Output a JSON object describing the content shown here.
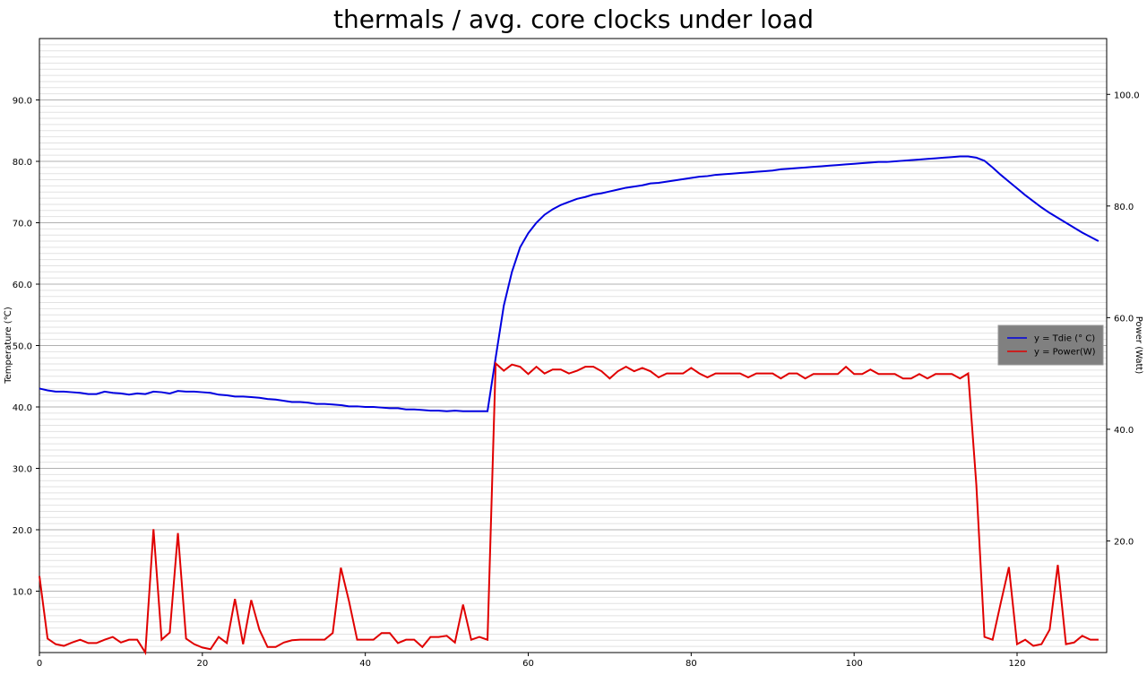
{
  "chart_data": {
    "type": "line",
    "title": "thermals / avg. core clocks under load",
    "y_label": "Temperature (℃)",
    "y2_label": "Power (Watt)",
    "x": [
      0,
      1,
      2,
      3,
      4,
      5,
      6,
      7,
      8,
      9,
      10,
      11,
      12,
      13,
      14,
      15,
      16,
      17,
      18,
      19,
      20,
      21,
      22,
      23,
      24,
      25,
      26,
      27,
      28,
      29,
      30,
      31,
      32,
      33,
      34,
      35,
      36,
      37,
      38,
      39,
      40,
      41,
      42,
      43,
      44,
      45,
      46,
      47,
      48,
      49,
      50,
      51,
      52,
      53,
      54,
      55,
      56,
      57,
      58,
      59,
      60,
      61,
      62,
      63,
      64,
      65,
      66,
      67,
      68,
      69,
      70,
      71,
      72,
      73,
      74,
      75,
      76,
      77,
      78,
      79,
      80,
      81,
      82,
      83,
      84,
      85,
      86,
      87,
      88,
      89,
      90,
      91,
      92,
      93,
      94,
      95,
      96,
      97,
      98,
      99,
      100,
      101,
      102,
      103,
      104,
      105,
      106,
      107,
      108,
      109,
      110,
      111,
      112,
      113,
      114,
      115,
      116,
      117,
      118,
      119,
      120,
      121,
      122,
      123,
      124,
      125,
      126,
      127,
      128,
      129,
      130
    ],
    "series": [
      {
        "name": "y = Tdie (° C)",
        "color": "#0000e0",
        "axis": "y",
        "values": [
          43.0,
          42.7,
          42.5,
          42.5,
          42.4,
          42.3,
          42.1,
          42.1,
          42.5,
          42.3,
          42.2,
          42.0,
          42.2,
          42.1,
          42.5,
          42.4,
          42.2,
          42.6,
          42.5,
          42.5,
          42.4,
          42.3,
          42.0,
          41.9,
          41.7,
          41.7,
          41.6,
          41.5,
          41.3,
          41.2,
          41.0,
          40.8,
          40.8,
          40.7,
          40.5,
          40.5,
          40.4,
          40.3,
          40.1,
          40.1,
          40.0,
          40.0,
          39.9,
          39.8,
          39.8,
          39.6,
          39.6,
          39.5,
          39.4,
          39.4,
          39.3,
          39.4,
          39.3,
          39.3,
          39.3,
          39.3,
          48.0,
          56.5,
          62.0,
          66.0,
          68.3,
          70.0,
          71.3,
          72.2,
          72.9,
          73.4,
          73.9,
          74.2,
          74.6,
          74.8,
          75.1,
          75.4,
          75.7,
          75.9,
          76.1,
          76.4,
          76.5,
          76.7,
          76.9,
          77.1,
          77.3,
          77.5,
          77.6,
          77.8,
          77.9,
          78.0,
          78.1,
          78.2,
          78.3,
          78.4,
          78.5,
          78.7,
          78.8,
          78.9,
          79.0,
          79.1,
          79.2,
          79.3,
          79.4,
          79.5,
          79.6,
          79.7,
          79.8,
          79.9,
          79.9,
          80.0,
          80.1,
          80.2,
          80.3,
          80.4,
          80.5,
          80.6,
          80.7,
          80.8,
          80.8,
          80.6,
          80.1,
          79.0,
          77.8,
          76.7,
          75.6,
          74.5,
          73.5,
          72.5,
          71.6,
          70.8,
          70.0,
          69.2,
          68.4,
          67.7,
          67.0
        ]
      },
      {
        "name": "y = Power(W)",
        "color": "#e00000",
        "axis": "y2",
        "values": [
          13.7,
          2.5,
          1.5,
          1.2,
          1.8,
          2.3,
          1.7,
          1.7,
          2.3,
          2.8,
          1.8,
          2.3,
          2.3,
          0.0,
          22.1,
          2.3,
          3.6,
          21.4,
          2.5,
          1.5,
          0.9,
          0.6,
          2.8,
          1.7,
          9.6,
          1.5,
          9.4,
          4.1,
          1.0,
          1.0,
          1.8,
          2.2,
          2.3,
          2.3,
          2.3,
          2.3,
          3.5,
          15.2,
          9.2,
          2.3,
          2.3,
          2.3,
          3.5,
          3.5,
          1.7,
          2.3,
          2.3,
          1.0,
          2.8,
          2.8,
          3.0,
          1.8,
          8.6,
          2.3,
          2.8,
          2.3,
          51.8,
          50.5,
          51.6,
          51.2,
          49.9,
          51.2,
          50.0,
          50.7,
          50.7,
          50.0,
          50.5,
          51.2,
          51.2,
          50.4,
          49.1,
          50.4,
          51.2,
          50.4,
          51.0,
          50.4,
          49.3,
          50.0,
          50.0,
          50.0,
          51.0,
          50.0,
          49.3,
          50.0,
          50.0,
          50.0,
          50.0,
          49.3,
          50.0,
          50.0,
          50.0,
          49.1,
          50.0,
          50.0,
          49.1,
          49.9,
          49.9,
          49.9,
          49.9,
          51.2,
          49.9,
          49.9,
          50.7,
          49.9,
          49.9,
          49.9,
          49.1,
          49.1,
          49.9,
          49.1,
          49.9,
          49.9,
          49.9,
          49.1,
          50.0,
          30.1,
          2.8,
          2.3,
          8.9,
          15.3,
          1.5,
          2.3,
          1.2,
          1.5,
          4.1,
          15.7,
          1.5,
          1.8,
          3.0,
          2.3,
          2.3
        ]
      }
    ],
    "xlim": [
      0,
      131
    ],
    "xticks": [
      0,
      20,
      40,
      60,
      80,
      100,
      120
    ],
    "ylim": [
      0,
      100
    ],
    "yticks": [
      {
        "value": 10,
        "label": "10.0"
      },
      {
        "value": 20,
        "label": "20.0"
      },
      {
        "value": 30,
        "label": "30.0"
      },
      {
        "value": 40,
        "label": "40.0"
      },
      {
        "value": 50,
        "label": "50.0"
      },
      {
        "value": 60,
        "label": "60.0"
      },
      {
        "value": 70,
        "label": "70.0"
      },
      {
        "value": 80,
        "label": "80.0"
      },
      {
        "value": 90,
        "label": "90.0"
      }
    ],
    "y2lim": [
      0,
      110
    ],
    "y2ticks": [
      {
        "value": 20,
        "label": "20.0"
      },
      {
        "value": 40,
        "label": "40.0"
      },
      {
        "value": 60,
        "label": "60.0"
      },
      {
        "value": 80,
        "label": "80.0"
      },
      {
        "value": 100,
        "label": "100.0"
      }
    ],
    "grid": true,
    "minor_grid": true,
    "legend": "center right"
  }
}
